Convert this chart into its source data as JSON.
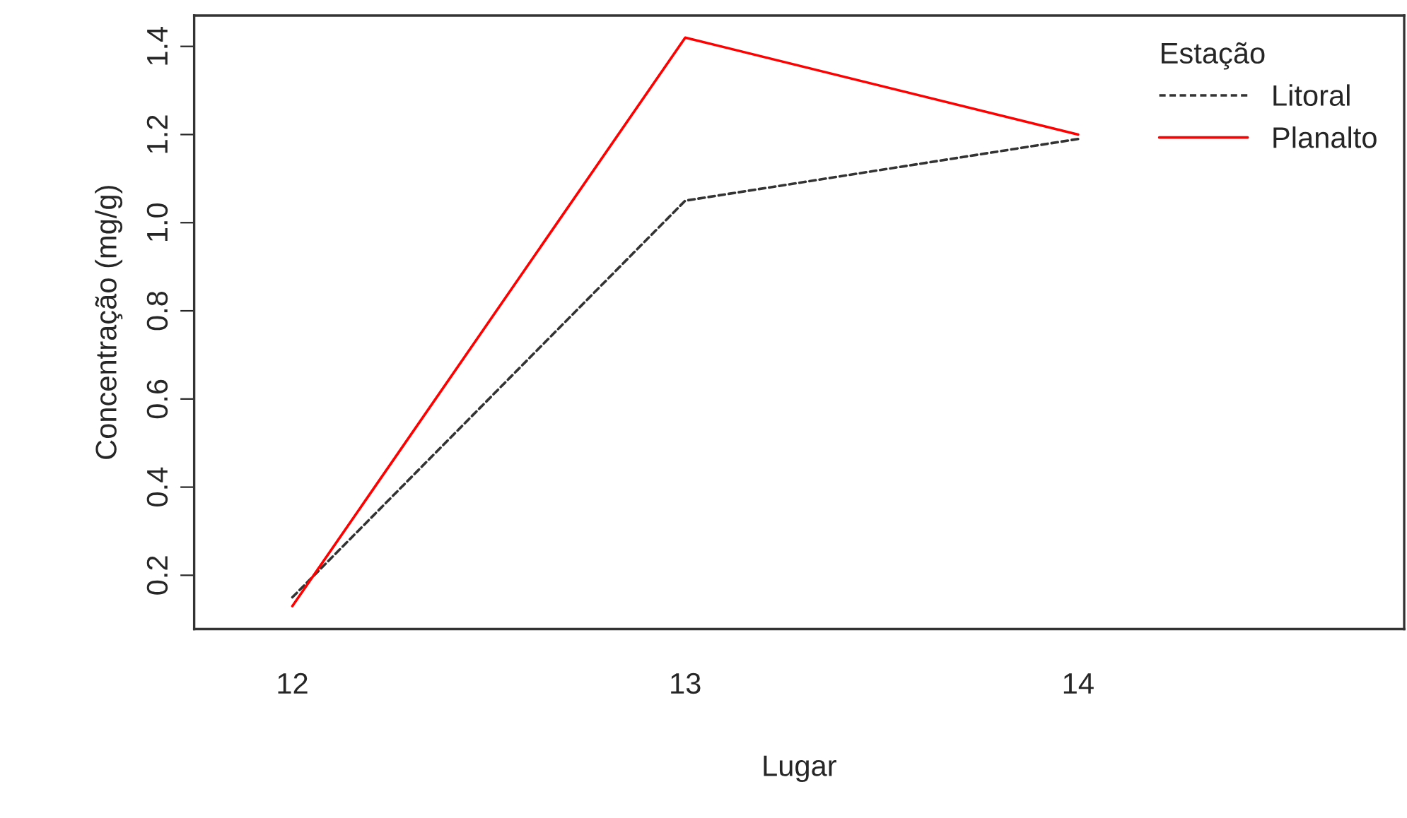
{
  "chart_data": {
    "type": "line",
    "xlabel": "Lugar",
    "ylabel": "Concentração (mg/g)",
    "legend_title": "Estação",
    "x": [
      12,
      13,
      14
    ],
    "xlim": [
      11.75,
      14.83
    ],
    "xticks": [
      12,
      13,
      14
    ],
    "series": [
      {
        "name": "Litoral",
        "color": "#333333",
        "line_style": "dashed",
        "values": [
          0.15,
          1.05,
          1.19
        ]
      },
      {
        "name": "Planalto",
        "color": "#ff0000",
        "line_style": "solid",
        "values": [
          0.13,
          1.42,
          1.2
        ]
      }
    ],
    "ylim": [
      0.078,
      1.47
    ],
    "yticks": [
      0.2,
      0.4,
      0.6,
      0.8,
      {
        "value": 1,
        "label": "1.0"
      },
      1.2,
      1.4
    ],
    "grid": false,
    "legend": "top right",
    "marker": "none"
  }
}
